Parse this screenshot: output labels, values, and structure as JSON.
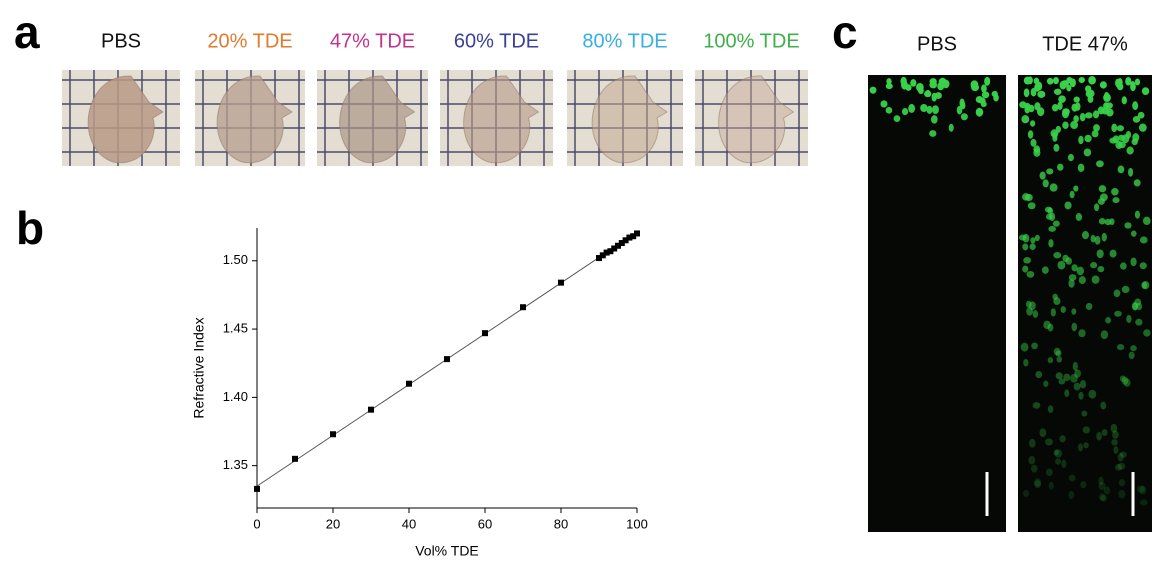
{
  "panel_labels": [
    "a",
    "b",
    "c"
  ],
  "panel_a": {
    "labels": [
      "PBS",
      "20% TDE",
      "47% TDE",
      "60% TDE",
      "80% TDE",
      "100% TDE"
    ],
    "colors": [
      "#111111",
      "#e07a2e",
      "#c0338a",
      "#3a3f98",
      "#3aaee0",
      "#3cb04a"
    ]
  },
  "chart_data": {
    "type": "scatter",
    "x_label": "Vol% TDE",
    "y_label": "Refractive Index",
    "x": [
      0,
      10,
      20,
      30,
      40,
      50,
      60,
      70,
      80,
      90,
      91,
      92,
      93,
      94,
      95,
      96,
      97,
      98,
      99,
      100
    ],
    "values": [
      1.333,
      1.355,
      1.373,
      1.391,
      1.41,
      1.428,
      1.447,
      1.466,
      1.484,
      1.502,
      1.504,
      1.506,
      1.507,
      1.509,
      1.511,
      1.513,
      1.515,
      1.517,
      1.518,
      1.52
    ],
    "color": "#000000",
    "fit_line": {
      "x": [
        0,
        100
      ],
      "values": [
        1.335,
        1.521
      ]
    },
    "xlim": [
      0,
      100
    ],
    "ylim": [
      1.319,
      1.524
    ],
    "xticks": [
      0,
      20,
      40,
      60,
      80,
      100
    ],
    "yticks": [
      1.35,
      {
        "value": 1.4,
        "label": "1.40"
      },
      1.45,
      {
        "value": 1.5,
        "label": "1.50"
      }
    ]
  },
  "panel_c": {
    "labels": [
      "PBS",
      "TDE 47%"
    ]
  }
}
